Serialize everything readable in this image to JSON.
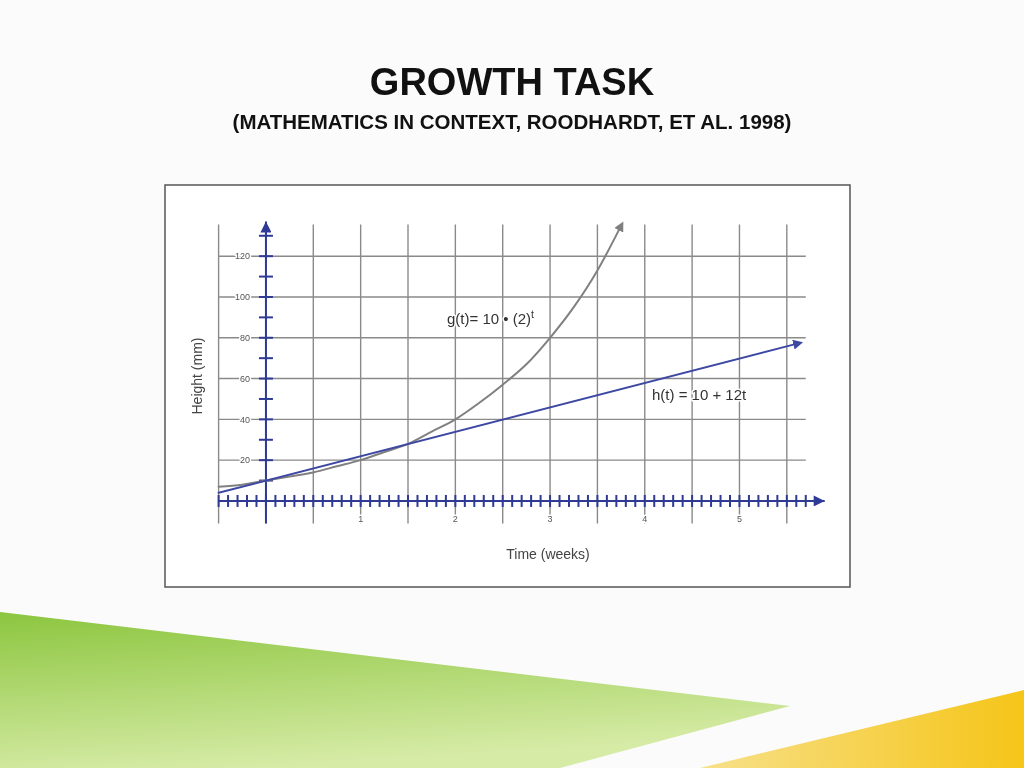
{
  "chart_data": {
    "type": "line",
    "title": "GROWTH TASK",
    "subtitle": "(MATHEMATICS IN CONTEXT, ROODHARDT, ET AL. 1998)",
    "xlabel": "Time (weeks)",
    "ylabel": "Height (mm)",
    "series": [
      {
        "name": "g(t)= 10 • (2)$^{t}$",
        "color": "#808080",
        "x": [
          -0.5,
          -0.25,
          0,
          0.25,
          0.5,
          0.75,
          1,
          1.25,
          1.5,
          1.75,
          2,
          2.25,
          2.5,
          2.75,
          3,
          3.25,
          3.5,
          3.74
        ],
        "values": [
          7,
          8,
          10,
          12,
          14,
          17,
          20,
          24,
          28,
          34,
          40,
          48,
          57,
          67,
          80,
          95,
          113,
          134
        ]
      },
      {
        "name": "h(t) = 10 + 12t",
        "color": "#3d48a3",
        "x": [
          -0.5,
          5.6
        ],
        "values": [
          4,
          77
        ]
      }
    ],
    "xlim": [
      -0.5,
      5.9
    ],
    "ylim": [
      -11,
      137
    ],
    "xticks": [
      {
        "value": -0.5,
        "label": null
      },
      {
        "value": -0.4,
        "label": null
      },
      {
        "value": -0.3,
        "label": null
      },
      {
        "value": -0.2,
        "label": null
      },
      {
        "value": -0.1,
        "label": null
      },
      {
        "value": 0,
        "label": null
      },
      {
        "value": 0.1,
        "label": null
      },
      {
        "value": 0.2,
        "label": null
      },
      {
        "value": 0.3,
        "label": null
      },
      {
        "value": 0.4,
        "label": null
      },
      {
        "value": 0.5,
        "label": null
      },
      {
        "value": 0.6,
        "label": null
      },
      {
        "value": 0.7,
        "label": null
      },
      {
        "value": 0.8,
        "label": null
      },
      {
        "value": 0.9,
        "label": null
      },
      1,
      {
        "value": 1.1,
        "label": null
      },
      {
        "value": 1.2,
        "label": null
      },
      {
        "value": 1.3,
        "label": null
      },
      {
        "value": 1.4,
        "label": null
      },
      {
        "value": 1.5,
        "label": null
      },
      {
        "value": 1.6,
        "label": null
      },
      {
        "value": 1.7,
        "label": null
      },
      {
        "value": 1.8,
        "label": null
      },
      {
        "value": 1.9,
        "label": null
      },
      2,
      {
        "value": 2.1,
        "label": null
      },
      {
        "value": 2.2,
        "label": null
      },
      {
        "value": 2.3,
        "label": null
      },
      {
        "value": 2.4,
        "label": null
      },
      {
        "value": 2.5,
        "label": null
      },
      {
        "value": 2.6,
        "label": null
      },
      {
        "value": 2.7,
        "label": null
      },
      {
        "value": 2.8,
        "label": null
      },
      {
        "value": 2.9,
        "label": null
      },
      3,
      {
        "value": 3.1,
        "label": null
      },
      {
        "value": 3.2,
        "label": null
      },
      {
        "value": 3.3,
        "label": null
      },
      {
        "value": 3.4,
        "label": null
      },
      {
        "value": 3.5,
        "label": null
      },
      {
        "value": 3.6,
        "label": null
      },
      {
        "value": 3.7,
        "label": null
      },
      {
        "value": 3.8,
        "label": null
      },
      {
        "value": 3.9,
        "label": null
      },
      4,
      {
        "value": 4.1,
        "label": null
      },
      {
        "value": 4.2,
        "label": null
      },
      {
        "value": 4.3,
        "label": null
      },
      {
        "value": 4.4,
        "label": null
      },
      {
        "value": 4.5,
        "label": null
      },
      {
        "value": 4.6,
        "label": null
      },
      {
        "value": 4.7,
        "label": null
      },
      {
        "value": 4.8,
        "label": null
      },
      {
        "value": 4.9,
        "label": null
      },
      5,
      {
        "value": 5.1,
        "label": null
      },
      {
        "value": 5.2,
        "label": null
      },
      {
        "value": 5.3,
        "label": null
      },
      {
        "value": 5.4,
        "label": null
      },
      {
        "value": 5.5,
        "label": null
      },
      {
        "value": 5.6,
        "label": null
      },
      {
        "value": 5.7,
        "label": null
      }
    ],
    "yticks": [
      {
        "value": 10,
        "label": null
      },
      20,
      {
        "value": 30,
        "label": null
      },
      40,
      {
        "value": 50,
        "label": null
      },
      60,
      {
        "value": 70,
        "label": null
      },
      80,
      {
        "value": 90,
        "label": null
      },
      100,
      {
        "value": 110,
        "label": null
      },
      120,
      {
        "value": 130,
        "label": null
      }
    ],
    "grid": true
  }
}
